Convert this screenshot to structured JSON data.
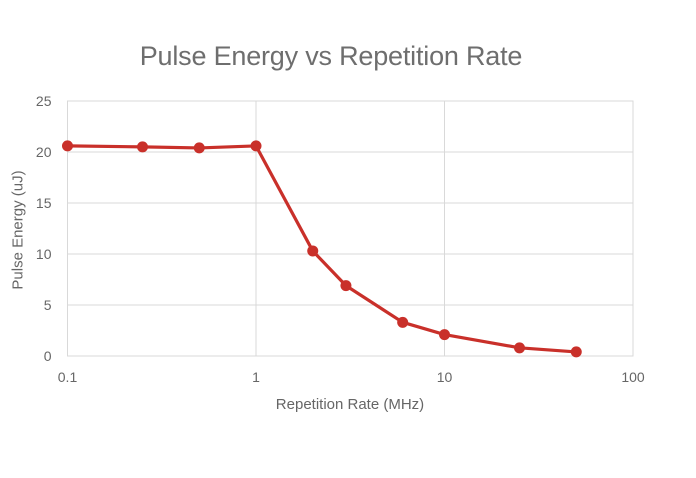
{
  "page": {
    "background": "#ffffff"
  },
  "chart_data": {
    "type": "line",
    "title": "Pulse Energy vs Repetition Rate",
    "xlabel": "Repetition Rate (MHz)",
    "ylabel": "Pulse Energy (uJ)",
    "x_scale": "log",
    "xlim": [
      0.1,
      100
    ],
    "ylim": [
      0,
      25
    ],
    "x_ticks": [
      0.1,
      1,
      10,
      100
    ],
    "x_tick_labels": [
      "0.1",
      "1",
      "10",
      "100"
    ],
    "y_ticks": [
      0,
      5,
      10,
      15,
      20,
      25
    ],
    "y_tick_labels": [
      "0",
      "5",
      "10",
      "15",
      "20",
      "25"
    ],
    "grid": true,
    "legend": false,
    "series": [
      {
        "name": "Pulse Energy",
        "marker": "circle",
        "x": [
          0.1,
          0.25,
          0.5,
          1,
          2,
          3,
          6,
          10,
          25,
          50
        ],
        "y": [
          20.6,
          20.5,
          20.4,
          20.6,
          10.3,
          6.9,
          3.3,
          2.1,
          0.8,
          0.4
        ]
      }
    ],
    "colors": {
      "line": "#c9302a",
      "marker": "#c9302a",
      "grid": "#d9d9d9",
      "axis_text": "#666666",
      "title_text": "#6e6e6e"
    }
  }
}
